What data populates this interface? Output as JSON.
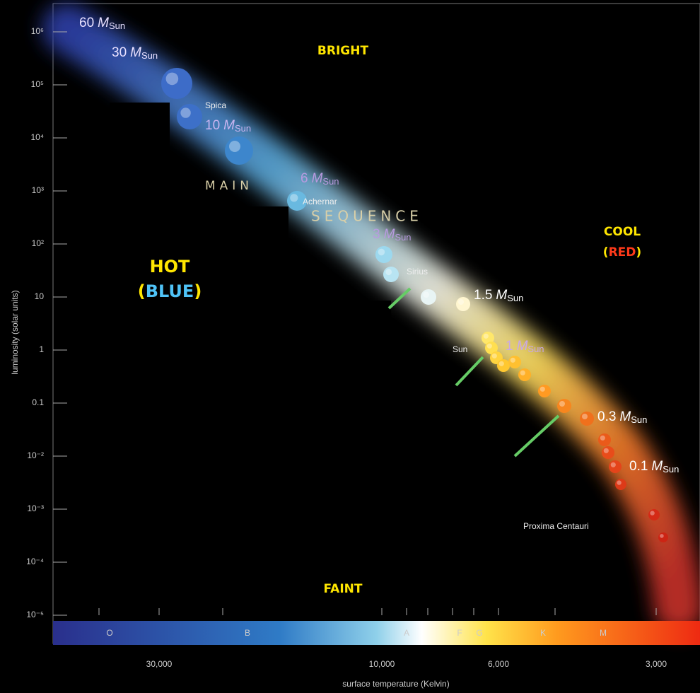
{
  "header": {
    "bright": "BRIGHT",
    "faint": "FAINT",
    "hot": "HOT",
    "hot_color_open": "(",
    "hot_color": "BLUE",
    "hot_color_close": ")",
    "cool": "COOL",
    "cool_color_open": "(",
    "cool_color": "RED",
    "cool_color_close": ")"
  },
  "y_axis": {
    "label": "luminosity (solar units)",
    "ticks": [
      "10⁶",
      "10⁵",
      "10⁴",
      "10³",
      "10²",
      "10",
      "1",
      "0.1",
      "10⁻²",
      "10⁻³",
      "10⁻⁴",
      "10⁻⁵"
    ]
  },
  "x_axis": {
    "label": "surface temperature (Kelvin)",
    "ticks": [
      "30,000",
      "10,000",
      "6,000",
      "3,000"
    ]
  },
  "spectral_classes": [
    "O",
    "B",
    "A",
    "F",
    "G",
    "K",
    "M"
  ],
  "sequence": {
    "main": "MAIN",
    "sequence": "SEQUENCE"
  },
  "stars": [
    "Spica",
    "Achernar",
    "Sirius",
    "Sun",
    "Proxima Centauri"
  ],
  "masses": [
    {
      "number": "60",
      "unit": "M",
      "subscript": "Sun"
    },
    {
      "number": "30",
      "unit": "M",
      "subscript": "Sun"
    },
    {
      "number": "10",
      "unit": "M",
      "subscript": "Sun"
    },
    {
      "number": "6",
      "unit": "M",
      "subscript": "Sun"
    },
    {
      "number": "3",
      "unit": "M",
      "subscript": "Sun"
    },
    {
      "number": "1.5",
      "unit": "M",
      "subscript": "Sun"
    },
    {
      "number": "1",
      "unit": "M",
      "subscript": "Sun"
    },
    {
      "number": "0.3",
      "unit": "M",
      "subscript": "Sun"
    },
    {
      "number": "0.1",
      "unit": "M",
      "subscript": "Sun"
    }
  ]
}
